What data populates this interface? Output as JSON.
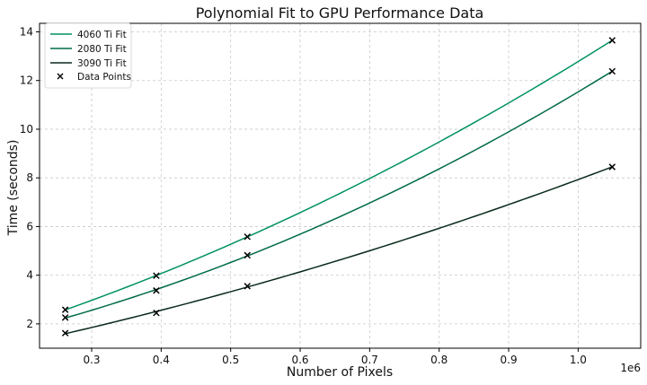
{
  "chart_data": {
    "type": "line",
    "title": "Polynomial Fit to GPU Performance Data",
    "xlabel": "Number of Pixels",
    "ylabel": "Time (seconds)",
    "x_offset_label": "1e6",
    "xlim": [
      0.225,
      1.09
    ],
    "ylim": [
      1.0,
      14.35
    ],
    "x_ticks": [
      0.3,
      0.4,
      0.5,
      0.6,
      0.7,
      0.8,
      0.9,
      1.0
    ],
    "x_tick_labels": [
      "0.3",
      "0.4",
      "0.5",
      "0.6",
      "0.7",
      "0.8",
      "0.9",
      "1.0"
    ],
    "y_ticks": [
      2,
      4,
      6,
      8,
      10,
      12,
      14
    ],
    "y_tick_labels": [
      "2",
      "4",
      "6",
      "8",
      "10",
      "12",
      "14"
    ],
    "grid": true,
    "legend_position": "top-left",
    "series": [
      {
        "name": "4060 Ti Fit",
        "color": "#00915f",
        "x": [
          0.262,
          0.393,
          0.524,
          1.049
        ],
        "y": [
          2.58,
          3.98,
          5.58,
          13.65
        ]
      },
      {
        "name": "2080 Ti Fit",
        "color": "#006b47",
        "x": [
          0.262,
          0.393,
          0.524,
          1.049
        ],
        "y": [
          2.26,
          3.37,
          4.82,
          12.38
        ]
      },
      {
        "name": "3090 Ti Fit",
        "color": "#0a2a1a",
        "x": [
          0.262,
          0.393,
          0.524,
          1.049
        ],
        "y": [
          1.62,
          2.45,
          3.55,
          8.45
        ]
      }
    ],
    "points_label": "Data Points",
    "points_color": "#000000"
  }
}
